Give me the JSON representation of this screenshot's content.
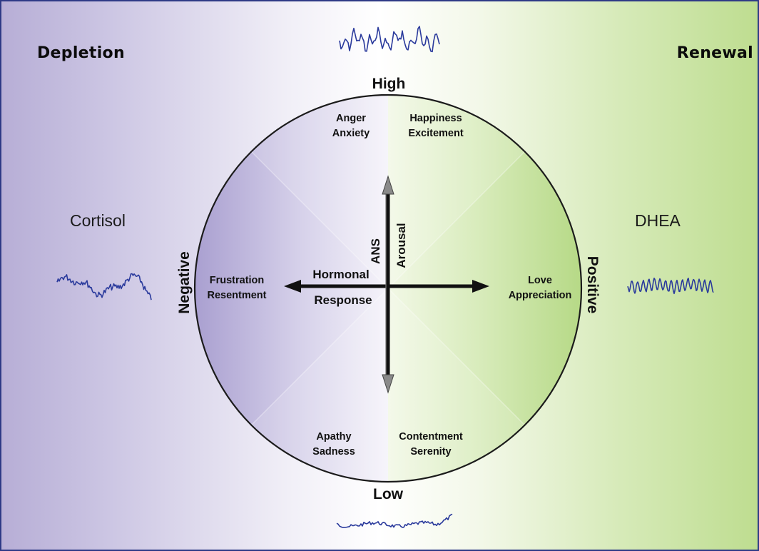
{
  "corners": {
    "left": "Depletion",
    "right": "Renewal"
  },
  "hormones": {
    "left": "Cortisol",
    "right": "DHEA"
  },
  "poles": {
    "top": "High",
    "bottom": "Low",
    "left": "Negative",
    "right": "Positive"
  },
  "axes": {
    "vertical_left": "ANS",
    "vertical_right": "Arousal",
    "horizontal_top": "Hormonal",
    "horizontal_bottom": "Response"
  },
  "emotions": {
    "top_left": [
      "Anger",
      "Anxiety"
    ],
    "top_right": [
      "Happiness",
      "Excitement"
    ],
    "left": [
      "Frustration",
      "Resentment"
    ],
    "right": [
      "Love",
      "Appreciation"
    ],
    "bottom_left": [
      "Apathy",
      "Sadness"
    ],
    "bottom_right": [
      "Contentment",
      "Serenity"
    ]
  },
  "waveforms": {
    "top": "high-arousal-wave",
    "bottom": "low-arousal-wave",
    "left": "cortisol-wave",
    "right": "dhea-wave"
  },
  "colors": {
    "negative_side": "#b7aed6",
    "positive_side": "#bedd90",
    "wave": "#2a3a9c",
    "border": "#2e3a86",
    "arrow_shaft": "#111111",
    "arrow_head_vertical": "#8a8a8a"
  }
}
